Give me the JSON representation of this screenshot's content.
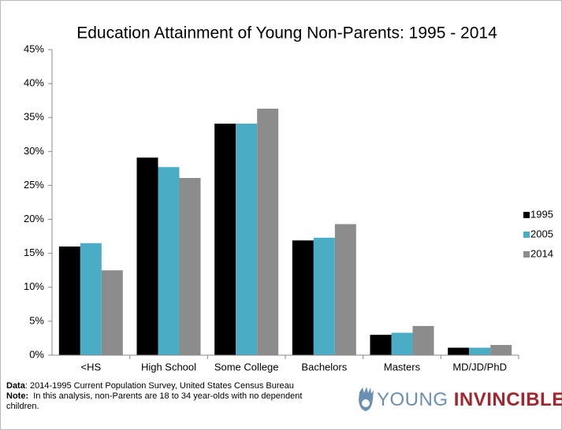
{
  "chart_data": {
    "type": "bar",
    "title": "Education Attainment of Young Non-Parents: 1995 - 2014",
    "categories": [
      "<HS",
      "High School",
      "Some College",
      "Bachelors",
      "Masters",
      "MD/JD/PhD"
    ],
    "series": [
      {
        "name": "1995",
        "color": "#000000",
        "values": [
          16.0,
          29.1,
          34.1,
          16.9,
          3.0,
          1.1
        ]
      },
      {
        "name": "2005",
        "color": "#4bacc6",
        "values": [
          16.5,
          27.7,
          34.1,
          17.3,
          3.3,
          1.1
        ]
      },
      {
        "name": "2014",
        "color": "#8c8c8c",
        "values": [
          12.5,
          26.1,
          36.3,
          19.3,
          4.3,
          1.5
        ]
      }
    ],
    "ylim": [
      0,
      45
    ],
    "yticks": [
      {
        "value": 0,
        "label": "0%"
      },
      {
        "value": 5,
        "label": "5%"
      },
      {
        "value": 10,
        "label": "10%"
      },
      {
        "value": 15,
        "label": "15%"
      },
      {
        "value": 20,
        "label": "20%"
      },
      {
        "value": 25,
        "label": "25%"
      },
      {
        "value": 30,
        "label": "30%"
      },
      {
        "value": 35,
        "label": "35%"
      },
      {
        "value": 40,
        "label": "40%"
      },
      {
        "value": 45,
        "label": "45%"
      }
    ],
    "legend": "right",
    "footnotes": [
      {
        "label": "Data",
        "text": ": 2014-1995 Current Population Survey, United States Census Bureau"
      },
      {
        "label": "Note:",
        "text": "  In this analysis, non-Parents are 18 to 34 year-olds with no dependent children."
      }
    ],
    "logo": [
      "YOUNG",
      "INVINCIBLES"
    ]
  }
}
